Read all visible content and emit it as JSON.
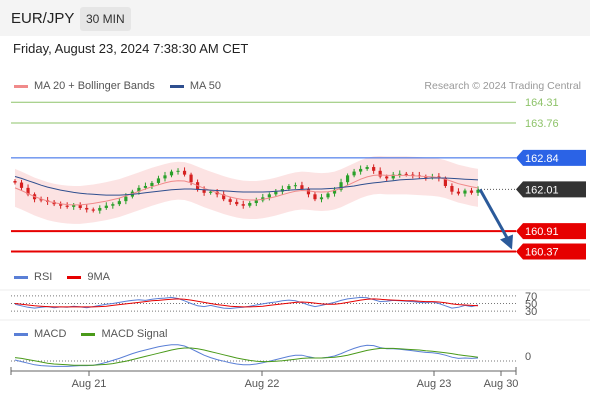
{
  "header": {
    "symbol": "EUR/JPY",
    "timeframe": "30 MIN"
  },
  "datetime": "Friday, August 23, 2024 7:38:30 AM CET",
  "credit": "Research © 2024 Trading Central",
  "colors": {
    "bollinger": "#f08a8a",
    "ma50": "#2f4f8f",
    "resistance": "#8ec36a",
    "pivot": "#2b63e6",
    "support": "#e60000",
    "current": "#333333",
    "rsi": "#5a7fd6",
    "rsi_ma": "#e60000",
    "macd": "#5a7fd6",
    "macd_signal": "#4a9a1a",
    "up_candle": "#2aa02a",
    "down_candle": "#d62020",
    "arrow": "#2b5a9a"
  },
  "chart_data": [
    {
      "type": "line",
      "name": "price",
      "legend": [
        {
          "label": "MA 20 + Bollinger Bands",
          "color": "#f08a8a"
        },
        {
          "label": "MA 50",
          "color": "#2f4f8f"
        }
      ],
      "x_ticks": [
        "Aug 21",
        "Aug 22",
        "Aug 23",
        "Aug 30"
      ],
      "y_range": [
        160.2,
        164.5
      ],
      "levels": [
        {
          "label": "164.31",
          "value": 164.31,
          "kind": "resistance"
        },
        {
          "label": "163.76",
          "value": 163.76,
          "kind": "resistance"
        },
        {
          "label": "162.84",
          "value": 162.84,
          "kind": "pivot"
        },
        {
          "label": "162.01",
          "value": 162.01,
          "kind": "current"
        },
        {
          "label": "160.91",
          "value": 160.91,
          "kind": "support"
        },
        {
          "label": "160.37",
          "value": 160.37,
          "kind": "support"
        }
      ],
      "close_series": [
        162.19,
        162.05,
        161.88,
        161.75,
        161.72,
        161.68,
        161.62,
        161.58,
        161.55,
        161.6,
        161.52,
        161.48,
        161.45,
        161.52,
        161.58,
        161.62,
        161.7,
        161.82,
        161.95,
        162.05,
        162.1,
        162.18,
        162.3,
        162.38,
        162.48,
        162.5,
        162.4,
        162.2,
        162.0,
        161.92,
        161.95,
        161.88,
        161.75,
        161.68,
        161.62,
        161.58,
        161.65,
        161.72,
        161.8,
        161.88,
        161.95,
        162.02,
        162.1,
        162.12,
        162.02,
        161.88,
        161.75,
        161.8,
        161.9,
        162.0,
        162.2,
        162.38,
        162.48,
        162.55,
        162.6,
        162.5,
        162.35,
        162.3,
        162.4,
        162.42,
        162.4,
        162.38,
        162.35,
        162.32,
        162.35,
        162.3,
        162.1,
        161.95,
        161.9,
        161.98,
        161.92,
        162.0
      ],
      "ma20_series": [
        162.05,
        161.98,
        161.9,
        161.82,
        161.76,
        161.7,
        161.66,
        161.63,
        161.61,
        161.6,
        161.6,
        161.62,
        161.64,
        161.67,
        161.7,
        161.74,
        161.78,
        161.84,
        161.9,
        161.96,
        162.02,
        162.08,
        162.13,
        162.18,
        162.22,
        162.24,
        162.23,
        162.18,
        162.11,
        162.04,
        161.98,
        161.92,
        161.86,
        161.81,
        161.77,
        161.74,
        161.73,
        161.73,
        161.75,
        161.78,
        161.82,
        161.87,
        161.92,
        161.96,
        161.98,
        161.97,
        161.95,
        161.94,
        161.95,
        161.98,
        162.04,
        162.12,
        162.2,
        162.28,
        162.34,
        162.38,
        162.39,
        162.38,
        162.38,
        162.38,
        162.38,
        162.37,
        162.36,
        162.35,
        162.34,
        162.32,
        162.28,
        162.22,
        162.16,
        162.12,
        162.08,
        162.05
      ],
      "ma50_series": [
        162.35,
        162.3,
        162.24,
        162.18,
        162.12,
        162.07,
        162.03,
        161.99,
        161.96,
        161.93,
        161.91,
        161.89,
        161.88,
        161.87,
        161.86,
        161.86,
        161.86,
        161.87,
        161.88,
        161.9,
        161.92,
        161.94,
        161.96,
        161.98,
        162.0,
        162.01,
        162.02,
        162.02,
        162.01,
        162.0,
        161.99,
        161.98,
        161.97,
        161.96,
        161.95,
        161.94,
        161.94,
        161.94,
        161.94,
        161.95,
        161.96,
        161.97,
        161.99,
        162.0,
        162.01,
        162.02,
        162.02,
        162.02,
        162.03,
        162.04,
        162.06,
        162.08,
        162.1,
        162.13,
        162.16,
        162.18,
        162.2,
        162.22,
        162.24,
        162.26,
        162.27,
        162.28,
        162.29,
        162.3,
        162.31,
        162.31,
        162.31,
        162.3,
        162.29,
        162.28,
        162.27,
        162.26
      ],
      "band_width": 0.5,
      "forecast": {
        "from": 162.01,
        "to": 160.37
      }
    },
    {
      "type": "line",
      "name": "rsi",
      "legend": [
        {
          "label": "RSI",
          "color": "#5a7fd6"
        },
        {
          "label": "9MA",
          "color": "#e60000"
        }
      ],
      "y_range": [
        20,
        80
      ],
      "levels": [
        {
          "label": "70",
          "value": 70
        },
        {
          "label": "50",
          "value": 50
        },
        {
          "label": "30",
          "value": 30
        }
      ],
      "rsi_series": [
        48,
        44,
        40,
        38,
        40,
        42,
        39,
        41,
        40,
        43,
        41,
        39,
        42,
        45,
        48,
        50,
        53,
        56,
        58,
        60,
        58,
        61,
        63,
        64,
        66,
        63,
        57,
        50,
        44,
        42,
        45,
        41,
        38,
        37,
        39,
        40,
        43,
        46,
        49,
        52,
        54,
        57,
        59,
        57,
        52,
        46,
        42,
        45,
        49,
        53,
        58,
        62,
        64,
        66,
        65,
        60,
        55,
        56,
        58,
        57,
        56,
        55,
        53,
        52,
        54,
        50,
        44,
        38,
        40,
        45,
        42,
        46
      ],
      "rsi_ma_series": [
        50,
        48,
        46,
        44,
        43,
        42,
        41,
        41,
        41,
        41,
        41,
        41,
        41,
        42,
        43,
        45,
        47,
        49,
        51,
        53,
        55,
        57,
        58,
        60,
        61,
        62,
        61,
        59,
        56,
        53,
        50,
        47,
        45,
        43,
        42,
        41,
        41,
        42,
        43,
        45,
        47,
        49,
        51,
        53,
        54,
        53,
        51,
        49,
        48,
        48,
        50,
        53,
        56,
        59,
        61,
        62,
        61,
        60,
        59,
        58,
        57,
        57,
        56,
        55,
        55,
        54,
        52,
        49,
        47,
        46,
        45,
        44
      ]
    },
    {
      "type": "line",
      "name": "macd",
      "legend": [
        {
          "label": "MACD",
          "color": "#5a7fd6"
        },
        {
          "label": "MACD Signal",
          "color": "#4a9a1a"
        }
      ],
      "y_range": [
        -0.4,
        0.4
      ],
      "levels": [
        {
          "label": "0",
          "value": 0
        }
      ],
      "macd_series": [
        -0.1,
        -0.14,
        -0.18,
        -0.22,
        -0.24,
        -0.25,
        -0.26,
        -0.26,
        -0.26,
        -0.25,
        -0.24,
        -0.24,
        -0.23,
        -0.2,
        -0.16,
        -0.11,
        -0.06,
        0.0,
        0.06,
        0.11,
        0.15,
        0.19,
        0.23,
        0.26,
        0.28,
        0.28,
        0.25,
        0.18,
        0.1,
        0.02,
        -0.04,
        -0.09,
        -0.13,
        -0.17,
        -0.2,
        -0.22,
        -0.22,
        -0.2,
        -0.17,
        -0.13,
        -0.09,
        -0.05,
        -0.01,
        0.02,
        0.02,
        -0.02,
        -0.05,
        -0.05,
        -0.03,
        0.0,
        0.06,
        0.13,
        0.19,
        0.24,
        0.27,
        0.26,
        0.21,
        0.18,
        0.18,
        0.17,
        0.15,
        0.13,
        0.11,
        0.09,
        0.08,
        0.06,
        0.02,
        -0.03,
        -0.06,
        -0.05,
        -0.06,
        -0.05
      ],
      "signal_series": [
        -0.04,
        -0.06,
        -0.09,
        -0.12,
        -0.15,
        -0.18,
        -0.2,
        -0.21,
        -0.22,
        -0.23,
        -0.23,
        -0.23,
        -0.23,
        -0.22,
        -0.21,
        -0.19,
        -0.16,
        -0.13,
        -0.09,
        -0.05,
        -0.01,
        0.03,
        0.07,
        0.11,
        0.15,
        0.18,
        0.2,
        0.2,
        0.18,
        0.15,
        0.11,
        0.07,
        0.03,
        -0.01,
        -0.05,
        -0.08,
        -0.11,
        -0.13,
        -0.14,
        -0.14,
        -0.13,
        -0.12,
        -0.1,
        -0.08,
        -0.06,
        -0.05,
        -0.05,
        -0.05,
        -0.04,
        -0.03,
        -0.01,
        0.02,
        0.06,
        0.1,
        0.14,
        0.17,
        0.19,
        0.19,
        0.19,
        0.18,
        0.17,
        0.16,
        0.15,
        0.13,
        0.12,
        0.1,
        0.08,
        0.06,
        0.03,
        0.01,
        -0.01,
        -0.03
      ]
    }
  ]
}
